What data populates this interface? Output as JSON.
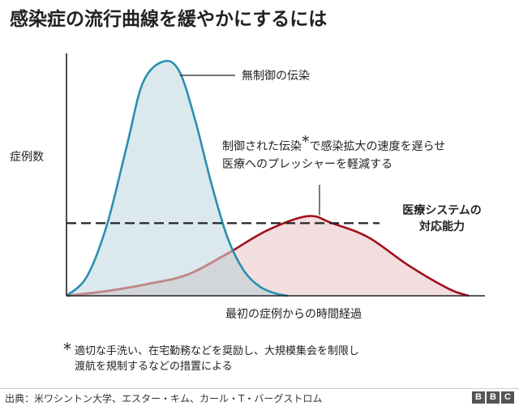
{
  "title": "感染症の流行曲線を緩やかにするには",
  "chart_data": {
    "type": "area",
    "title": "感染症の流行曲線を緩やかにするには",
    "xlabel": "最初の症例からの時間経過",
    "ylabel": "症例数",
    "grid": false,
    "x_range": [
      0,
      100
    ],
    "y_range": [
      0,
      100
    ],
    "series": [
      {
        "name": "無制御の伝染",
        "color": "#2a8fb0",
        "fill": "#dbe9ee",
        "points": [
          [
            0,
            0
          ],
          [
            5,
            8
          ],
          [
            10,
            30
          ],
          [
            15,
            64
          ],
          [
            19,
            91
          ],
          [
            24,
            100
          ],
          [
            28,
            96
          ],
          [
            32,
            75
          ],
          [
            36,
            48
          ],
          [
            40,
            25
          ],
          [
            44,
            11
          ],
          [
            48,
            4
          ],
          [
            52,
            1
          ],
          [
            55,
            0
          ]
        ]
      },
      {
        "name": "制御された伝染",
        "color": "#a0101e",
        "fill": "#f2dede",
        "points": [
          [
            0,
            0
          ],
          [
            10,
            2
          ],
          [
            20,
            5
          ],
          [
            30,
            9
          ],
          [
            40,
            18
          ],
          [
            50,
            28
          ],
          [
            60,
            34
          ],
          [
            66,
            31
          ],
          [
            75,
            25
          ],
          [
            85,
            13
          ],
          [
            95,
            3
          ],
          [
            100,
            0
          ]
        ]
      }
    ],
    "capacity": {
      "y": 31,
      "label_line1": "医療システムの",
      "label_line2": "対応能力"
    },
    "annotations": {
      "uncontrolled": "無制御の伝染",
      "controlled_line1": "制御された伝染",
      "controlled_star": "*",
      "controlled_line1b": "で感染拡大の速度を遅らせ",
      "controlled_line2": "医療へのプレッシャーを軽減する"
    }
  },
  "footnote": {
    "star": "*",
    "line1": "適切な手洗い、在宅勤務などを奨励し、大規模集会を制限し",
    "line2": "渡航を規制するなどの措置による"
  },
  "source": "出典：米ワシントン大学、エスター・キム、カール・T・バーグストロム",
  "logo": [
    "B",
    "B",
    "C"
  ],
  "colors": {
    "uncontrolled_line": "#2a8fb0",
    "uncontrolled_fill": "#dbe9ee",
    "controlled_line": "#a0101e",
    "controlled_fill": "#f2dede",
    "overlap_fill": "#d2d6d8",
    "axis": "#222222",
    "bbc_block": "#555555"
  }
}
